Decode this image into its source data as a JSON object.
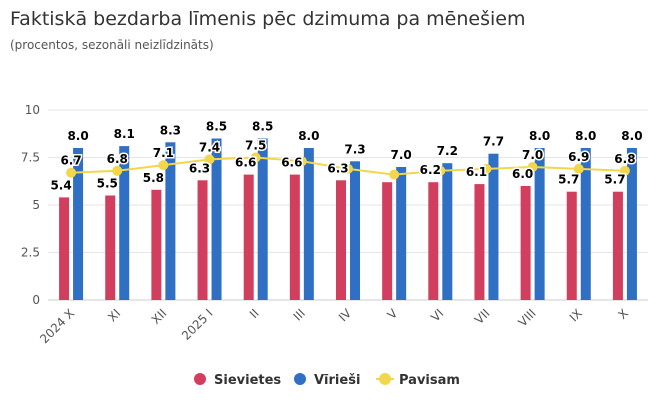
{
  "title": "Faktiskā bezdarba līmenis pēc dzimuma pa mēnešiem",
  "subtitle": "(procentos, sezonāli neizlīdzināts)",
  "chart_data": {
    "type": "bar",
    "title": "Faktiskā bezdarba līmenis pēc dzimuma pa mēnešiem",
    "subtitle": "(procentos, sezonāli neizlīdzināts)",
    "categories": [
      "2024 X",
      "XI",
      "XII",
      "2025 I",
      "II",
      "III",
      "IV",
      "V",
      "VI",
      "VII",
      "VIII",
      "IX",
      "X"
    ],
    "ylim": [
      0,
      10
    ],
    "yticks": [
      0,
      2.5,
      5,
      7.5,
      10
    ],
    "ytick_labels": [
      "0",
      "2.5",
      "5",
      "7.5",
      "10"
    ],
    "grid": true,
    "legend": "bottom",
    "series": [
      {
        "name": "Sievietes",
        "type": "bar",
        "color": "#d23e5e",
        "values": [
          5.4,
          5.5,
          5.8,
          6.3,
          6.6,
          6.6,
          6.3,
          6.2,
          6.2,
          6.1,
          6.0,
          5.7,
          5.7
        ],
        "labels_shown": [
          true,
          true,
          true,
          true,
          true,
          true,
          true,
          false,
          true,
          true,
          true,
          true,
          true
        ]
      },
      {
        "name": "Vīrieši",
        "type": "bar",
        "color": "#2f6fc4",
        "values": [
          8.0,
          8.1,
          8.3,
          8.5,
          8.5,
          8.0,
          7.3,
          7.0,
          7.2,
          7.7,
          8.0,
          8.0,
          8.0
        ],
        "labels_shown": [
          true,
          true,
          true,
          true,
          true,
          true,
          true,
          true,
          true,
          true,
          true,
          true,
          true
        ]
      },
      {
        "name": "Pavisam",
        "type": "line",
        "color": "#f2d64b",
        "values": [
          6.7,
          6.8,
          7.1,
          7.4,
          7.5,
          7.3,
          6.9,
          6.6,
          6.8,
          6.9,
          7.0,
          6.9,
          6.8
        ],
        "labels_shown": [
          true,
          true,
          true,
          true,
          true,
          false,
          false,
          false,
          false,
          false,
          true,
          true,
          true
        ]
      }
    ]
  }
}
